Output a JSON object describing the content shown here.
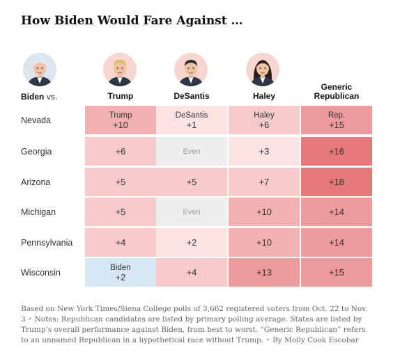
{
  "title": "How Biden Would Fare Against …",
  "row_header": {
    "name": "Biden",
    "vs": "vs."
  },
  "columns": [
    {
      "key": "trump",
      "label_lines": [
        "Trump"
      ],
      "avatar": "trump-portrait",
      "avatar_bg": "#f7d6d2"
    },
    {
      "key": "desantis",
      "label_lines": [
        "DeSantis"
      ],
      "avatar": "desantis-portrait",
      "avatar_bg": "#f7d6d2"
    },
    {
      "key": "haley",
      "label_lines": [
        "Haley"
      ],
      "avatar": "haley-portrait",
      "avatar_bg": "#f7d6d2"
    },
    {
      "key": "generic",
      "label_lines": [
        "Generic",
        "Republican"
      ],
      "avatar": "",
      "avatar_bg": ""
    }
  ],
  "biden_avatar": {
    "icon": "biden-portrait",
    "bg": "#dde6f0"
  },
  "colors": {
    "rep_scale": [
      "#fbe3e3",
      "#f6caca",
      "#f1b1b1",
      "#ec9a9a",
      "#e57878"
    ],
    "even": "#eeeeee",
    "dem": "#d7e7f4"
  },
  "chart_data": {
    "type": "table",
    "title": "How Biden Would Fare Against …",
    "columns": [
      "Trump",
      "DeSantis",
      "Haley",
      "Generic Republican"
    ],
    "rows": [
      {
        "state": "Nevada",
        "cells": [
          {
            "leader": "Trump",
            "text": "+10",
            "party": "rep",
            "margin": 10
          },
          {
            "leader": "DeSantis",
            "text": "+1",
            "party": "rep",
            "margin": 1
          },
          {
            "leader": "Haley",
            "text": "+6",
            "party": "rep",
            "margin": 6
          },
          {
            "leader": "Rep.",
            "text": "+15",
            "party": "rep",
            "margin": 15
          }
        ]
      },
      {
        "state": "Georgia",
        "cells": [
          {
            "text": "+6",
            "party": "rep",
            "margin": 6
          },
          {
            "text": "Even",
            "party": "even",
            "margin": 0
          },
          {
            "text": "+3",
            "party": "rep",
            "margin": 3
          },
          {
            "text": "+16",
            "party": "rep",
            "margin": 16
          }
        ]
      },
      {
        "state": "Arizona",
        "cells": [
          {
            "text": "+5",
            "party": "rep",
            "margin": 5
          },
          {
            "text": "+5",
            "party": "rep",
            "margin": 5
          },
          {
            "text": "+7",
            "party": "rep",
            "margin": 7
          },
          {
            "text": "+18",
            "party": "rep",
            "margin": 18
          }
        ]
      },
      {
        "state": "Michigan",
        "cells": [
          {
            "text": "+5",
            "party": "rep",
            "margin": 5
          },
          {
            "text": "Even",
            "party": "even",
            "margin": 0
          },
          {
            "text": "+10",
            "party": "rep",
            "margin": 10
          },
          {
            "text": "+14",
            "party": "rep",
            "margin": 14
          }
        ]
      },
      {
        "state": "Pennsylvania",
        "cells": [
          {
            "text": "+4",
            "party": "rep",
            "margin": 4
          },
          {
            "text": "+2",
            "party": "rep",
            "margin": 2
          },
          {
            "text": "+10",
            "party": "rep",
            "margin": 10
          },
          {
            "text": "+14",
            "party": "rep",
            "margin": 14
          }
        ]
      },
      {
        "state": "Wisconsin",
        "cells": [
          {
            "leader": "Biden",
            "text": "+2",
            "party": "dem",
            "margin": 2
          },
          {
            "text": "+4",
            "party": "rep",
            "margin": 4
          },
          {
            "text": "+13",
            "party": "rep",
            "margin": 13
          },
          {
            "text": "+15",
            "party": "rep",
            "margin": 15
          }
        ]
      }
    ]
  },
  "footnote": {
    "source": "Based on New York Times/Siena College polls of 3,662 registered voters from Oct. 22 to Nov. 3",
    "separator": "•",
    "notes": "Notes: Republican candidates are listed by primary polling average. States are listed by Trump’s overall performance against Biden, from best to worst. “Generic Republican” refers to an unnamed Republican in a hypothetical race without Trump.",
    "byline": "By Molly Cook Escobar"
  }
}
